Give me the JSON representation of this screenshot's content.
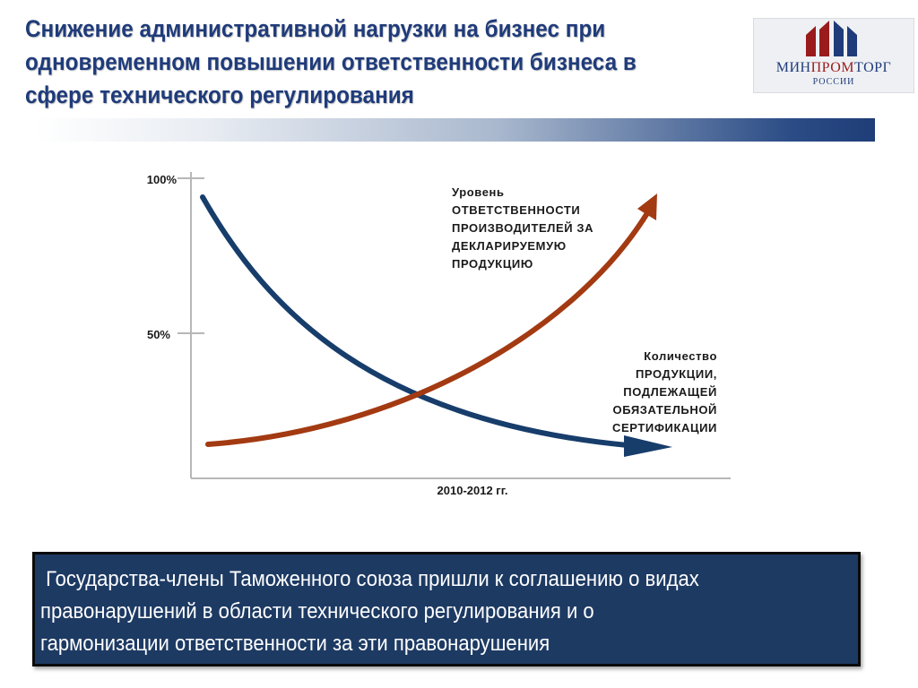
{
  "slide": {
    "title_lines": [
      "Снижение административной нагрузки на бизнес при",
      "одновременном повышении ответственности бизнеса в",
      "сфере технического регулирования"
    ]
  },
  "logo": {
    "name_prefix": "МИН",
    "name_accent": "ПРОМ",
    "name_suffix": "ТОРГ",
    "sub": "РОССИИ",
    "colors": {
      "red": "#9a1b1b",
      "blue": "#1f3b7a"
    }
  },
  "chart_data": {
    "type": "line",
    "xlabel": "2010-2012 гг.",
    "yticks": [
      "100%",
      "50%"
    ],
    "series": [
      {
        "name": "Уровень ответственности производителей за декларируемую продукцию",
        "label_lines": [
          "Уровень",
          "ответственности",
          "производителей за",
          "декларируемую",
          "продукцию"
        ],
        "trend": "increasing",
        "color": "#a33a12"
      },
      {
        "name": "Количество продукции, подлежащей обязательной сертификации",
        "label_lines": [
          "Количество",
          "продукции,",
          "подлежащей",
          "обязательной",
          "сертификации"
        ],
        "trend": "decreasing",
        "color": "#173d6b"
      }
    ]
  },
  "info_box": {
    "text": " Государства-члены Таможенного союза пришли к соглашению о видах\nправонарушений в области технического регулирования и о\nгармонизации ответственности за эти правонарушения"
  }
}
